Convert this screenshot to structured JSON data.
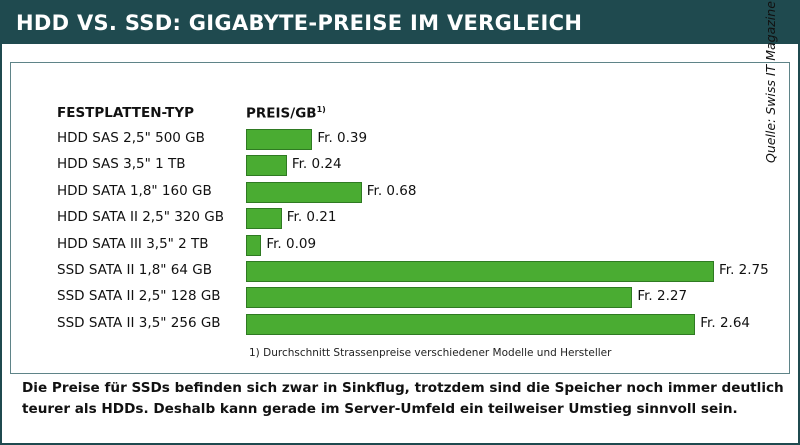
{
  "header": {
    "title": "HDD VS. SSD: GIGABYTE-PREISE IM VERGLEICH"
  },
  "columns": {
    "type_header": "FESTPLATTEN-TYP",
    "price_header": "PREIS/GB",
    "price_footnote_mark": "1)"
  },
  "source": "Quelle: Swiss IT Magazine",
  "footnote": "1) Durchschnitt Strassenpreise verschiedener Modelle und Hersteller",
  "summary": "Die Preise für SSDs befinden sich zwar in Sinkflug, trotzdem sind die Speicher noch immer deutlich teurer als HDDs. Deshalb kann gerade im Server-Umfeld ein teilweiser Umstieg sinnvoll sein.",
  "colors": {
    "header_bg": "#1f4a4f",
    "bar_fill": "#4aac32",
    "bar_border": "#2f7a22"
  },
  "chart_data": {
    "type": "bar",
    "orientation": "horizontal",
    "title": "HDD VS. SSD: GIGABYTE-PREISE IM VERGLEICH",
    "xlabel": "PREIS/GB",
    "ylabel": "FESTPLATTEN-TYP",
    "categories": [
      "HDD SAS 2,5\" 500 GB",
      "HDD SAS 3,5\" 1 TB",
      "HDD SATA 1,8\" 160 GB",
      "HDD SATA II 2,5\" 320 GB",
      "HDD SATA III 3,5\" 2 TB",
      "SSD SATA II 1,8\" 64 GB",
      "SSD SATA II 2,5\" 128 GB",
      "SSD SATA II 3,5\" 256 GB"
    ],
    "values": [
      0.39,
      0.24,
      0.68,
      0.21,
      0.09,
      2.75,
      2.27,
      2.64
    ],
    "value_labels": [
      "Fr. 0.39",
      "Fr. 0.24",
      "Fr. 0.68",
      "Fr. 0.21",
      "Fr. 0.09",
      "Fr. 2.75",
      "Fr. 2.27",
      "Fr. 2.64"
    ],
    "xlim": [
      0,
      2.75
    ],
    "grid": false,
    "legend": "none"
  }
}
